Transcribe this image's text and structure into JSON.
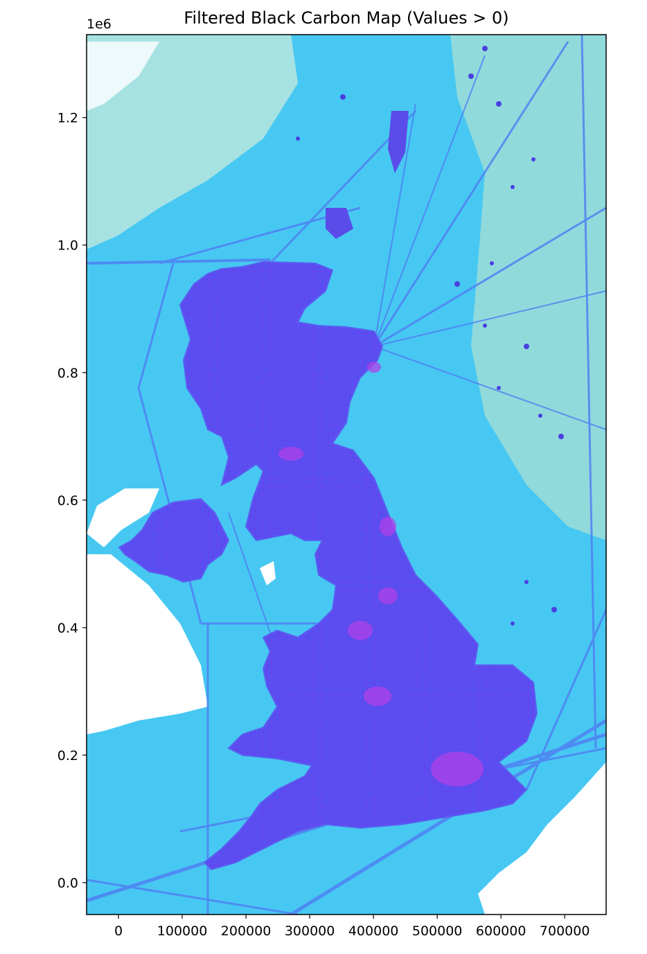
{
  "title": "Filtered Black Carbon Map (Values > 0)",
  "y_offset_label": "1e6",
  "x_ticks": [
    {
      "value": 0,
      "label": "0"
    },
    {
      "value": 100000,
      "label": "100000"
    },
    {
      "value": 200000,
      "label": "200000"
    },
    {
      "value": 300000,
      "label": "300000"
    },
    {
      "value": 400000,
      "label": "400000"
    },
    {
      "value": 500000,
      "label": "500000"
    },
    {
      "value": 600000,
      "label": "600000"
    },
    {
      "value": 700000,
      "label": "700000"
    }
  ],
  "y_ticks": [
    {
      "value": 0.0,
      "label": "0.0"
    },
    {
      "value": 0.2,
      "label": "0.2"
    },
    {
      "value": 0.4,
      "label": "0.4"
    },
    {
      "value": 0.6,
      "label": "0.6"
    },
    {
      "value": 0.8,
      "label": "0.8"
    },
    {
      "value": 1.0,
      "label": "1.0"
    },
    {
      "value": 1.2,
      "label": "1.2"
    }
  ],
  "chart_data": {
    "type": "heatmap",
    "title": "Filtered Black Carbon Map (Values > 0)",
    "xlim": [
      -50000,
      765000
    ],
    "ylim": [
      -0.05,
      1.33
    ],
    "y_scale_factor": "1e6",
    "colormap_colors": [
      "#5a3cf0",
      "#4a6ef5",
      "#42b4f5",
      "#4fe8f0",
      "#a6e8c8",
      "#c89be6"
    ],
    "grid": false,
    "legend": "none"
  }
}
